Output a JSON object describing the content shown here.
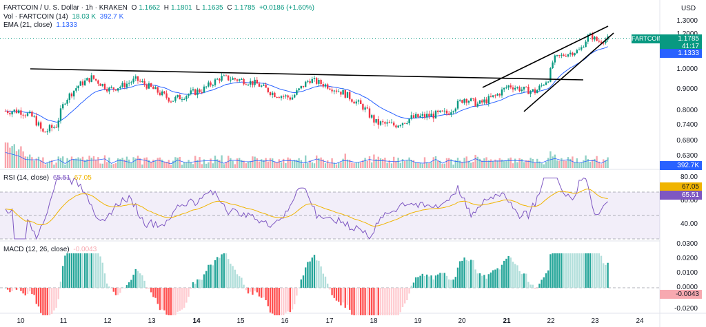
{
  "header": {
    "symbol_line": "FARTCOIN / U. S. Dollar · 1h · KRAKEN",
    "open_label": "O",
    "open": "1.1662",
    "high_label": "H",
    "high": "1.1801",
    "low_label": "L",
    "low": "1.1635",
    "close_label": "C",
    "close": "1.1785",
    "change": "+0.0186 (+1.60%)",
    "vol_label": "Vol · FARTCOIN (14)",
    "vol_value": "18.03 K",
    "vol_ma": "392.7 K",
    "ema_label": "EMA (21, close)",
    "ema_value": "1.1333",
    "currency": "USD"
  },
  "price_axis": {
    "ticks": [
      "1.3000",
      "1.2000",
      "1.0000",
      "0.9000",
      "0.8000",
      "0.7400",
      "0.6800",
      "0.6300"
    ],
    "tick_values": [
      1.3,
      1.2,
      1.0,
      0.9,
      0.8,
      0.74,
      0.68,
      0.63
    ],
    "symbol_tag": "FARTCOINUSD",
    "last_price": "1.1785",
    "countdown": "41:17",
    "ema_badge": "1.1333",
    "vol_badge": "392.7K"
  },
  "rsi": {
    "label": "RSI (14, close)",
    "value": "65.51",
    "ma_value": "67.05",
    "ticks": [
      "80.00",
      "60.00",
      "40.00"
    ],
    "badge_ma": "67.05",
    "badge_value": "65.51"
  },
  "macd": {
    "label": "MACD (12, 26, close)",
    "value": "-0.0043",
    "ticks": [
      "0.0300",
      "0.0200",
      "0.0100",
      "0.0000",
      "-0.0100",
      "-0.0200"
    ],
    "badge": "-0.0043"
  },
  "time_axis": {
    "labels": [
      "10",
      "11",
      "12",
      "13",
      "14",
      "15",
      "16",
      "17",
      "18",
      "19",
      "20",
      "21",
      "22",
      "23",
      "24"
    ],
    "bold": [
      "14",
      "21"
    ]
  },
  "colors": {
    "up": "#089981",
    "down": "#f23645",
    "ema": "#2962ff",
    "rsi": "#7e57c2",
    "rsi_ma": "#f0b400"
  },
  "chart_data": {
    "type": "candlestick",
    "title": "FARTCOIN / U. S. Dollar · 1h · KRAKEN",
    "ylabel": "USD",
    "ylim": [
      0.6,
      1.32
    ],
    "trendlines": [
      {
        "name": "resistance",
        "from": [
          "10",
          1.0
        ],
        "to": [
          "20.9",
          0.94
        ]
      },
      {
        "name": "wedge-upper",
        "from": [
          "20.5",
          0.92
        ],
        "to": [
          "23.4",
          1.27
        ]
      },
      {
        "name": "wedge-lower",
        "from": [
          "21.4",
          0.81
        ],
        "to": [
          "23.4",
          1.22
        ]
      }
    ],
    "price_path": [
      {
        "t": 10.0,
        "p": 0.8
      },
      {
        "t": 10.3,
        "p": 0.77
      },
      {
        "t": 10.5,
        "p": 0.71
      },
      {
        "t": 10.8,
        "p": 0.74
      },
      {
        "t": 11.0,
        "p": 0.85
      },
      {
        "t": 11.3,
        "p": 0.92
      },
      {
        "t": 11.6,
        "p": 0.96
      },
      {
        "t": 12.0,
        "p": 0.9
      },
      {
        "t": 12.3,
        "p": 0.92
      },
      {
        "t": 12.6,
        "p": 0.95
      },
      {
        "t": 13.0,
        "p": 0.9
      },
      {
        "t": 13.4,
        "p": 0.85
      },
      {
        "t": 13.8,
        "p": 0.88
      },
      {
        "t": 14.1,
        "p": 0.9
      },
      {
        "t": 14.5,
        "p": 0.96
      },
      {
        "t": 14.9,
        "p": 0.95
      },
      {
        "t": 15.3,
        "p": 0.93
      },
      {
        "t": 15.7,
        "p": 0.88
      },
      {
        "t": 16.1,
        "p": 0.86
      },
      {
        "t": 16.5,
        "p": 0.95
      },
      {
        "t": 16.9,
        "p": 0.92
      },
      {
        "t": 17.3,
        "p": 0.88
      },
      {
        "t": 17.7,
        "p": 0.82
      },
      {
        "t": 18.0,
        "p": 0.75
      },
      {
        "t": 18.4,
        "p": 0.74
      },
      {
        "t": 18.8,
        "p": 0.77
      },
      {
        "t": 19.2,
        "p": 0.78
      },
      {
        "t": 19.6,
        "p": 0.79
      },
      {
        "t": 20.0,
        "p": 0.86
      },
      {
        "t": 20.3,
        "p": 0.83
      },
      {
        "t": 20.7,
        "p": 0.87
      },
      {
        "t": 21.0,
        "p": 0.92
      },
      {
        "t": 21.3,
        "p": 0.9
      },
      {
        "t": 21.6,
        "p": 0.89
      },
      {
        "t": 21.9,
        "p": 0.96
      },
      {
        "t": 22.0,
        "p": 1.06
      },
      {
        "t": 22.3,
        "p": 1.09
      },
      {
        "t": 22.6,
        "p": 1.11
      },
      {
        "t": 22.8,
        "p": 1.2
      },
      {
        "t": 23.0,
        "p": 1.16
      },
      {
        "t": 23.3,
        "p": 1.1785
      }
    ]
  }
}
